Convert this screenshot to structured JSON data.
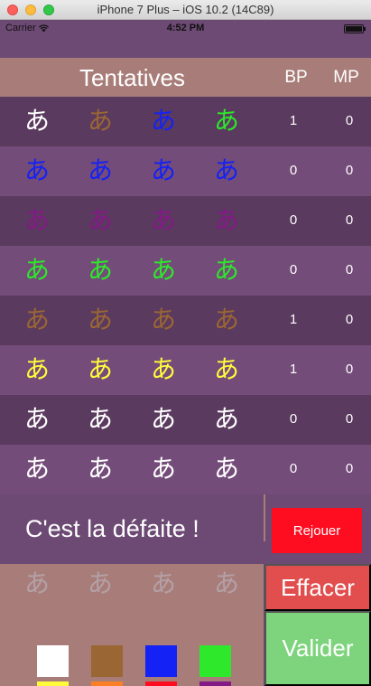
{
  "window": {
    "title": "iPhone 7 Plus – iOS 10.2 (14C89)"
  },
  "status_bar": {
    "carrier": "Carrier",
    "time": "4:52 PM"
  },
  "header": {
    "title": "Tentatives",
    "bp_label": "BP",
    "mp_label": "MP"
  },
  "glyph": "あ",
  "colors": {
    "white": "#ffffff",
    "brown": "#9a6634",
    "blue": "#1422f5",
    "green": "#2de82b",
    "yellow": "#fffb3b",
    "orange": "#fb7f24",
    "red": "#fe0d21",
    "purple": "#831a86"
  },
  "attempts": [
    {
      "pegs": [
        "white",
        "brown",
        "blue",
        "green"
      ],
      "bp": "1",
      "mp": "0"
    },
    {
      "pegs": [
        "blue",
        "blue",
        "blue",
        "blue"
      ],
      "bp": "0",
      "mp": "0"
    },
    {
      "pegs": [
        "purple",
        "purple",
        "purple",
        "purple"
      ],
      "bp": "0",
      "mp": "0"
    },
    {
      "pegs": [
        "green",
        "green",
        "green",
        "green"
      ],
      "bp": "0",
      "mp": "0"
    },
    {
      "pegs": [
        "brown",
        "brown",
        "brown",
        "brown"
      ],
      "bp": "1",
      "mp": "0"
    },
    {
      "pegs": [
        "yellow",
        "yellow",
        "yellow",
        "yellow"
      ],
      "bp": "1",
      "mp": "0"
    },
    {
      "pegs": [
        "white",
        "white",
        "white",
        "white"
      ],
      "bp": "0",
      "mp": "0"
    },
    {
      "pegs": [
        "white",
        "white",
        "white",
        "white"
      ],
      "bp": "0",
      "mp": "0"
    }
  ],
  "result": {
    "message": "C'est la défaite !",
    "replay_label": "Rejouer"
  },
  "current_guess": [
    "empty",
    "empty",
    "empty",
    "empty"
  ],
  "palette": [
    "white",
    "brown",
    "blue",
    "green",
    "yellow",
    "orange",
    "red",
    "purple"
  ],
  "actions": {
    "clear_label": "Effacer",
    "submit_label": "Valider"
  }
}
